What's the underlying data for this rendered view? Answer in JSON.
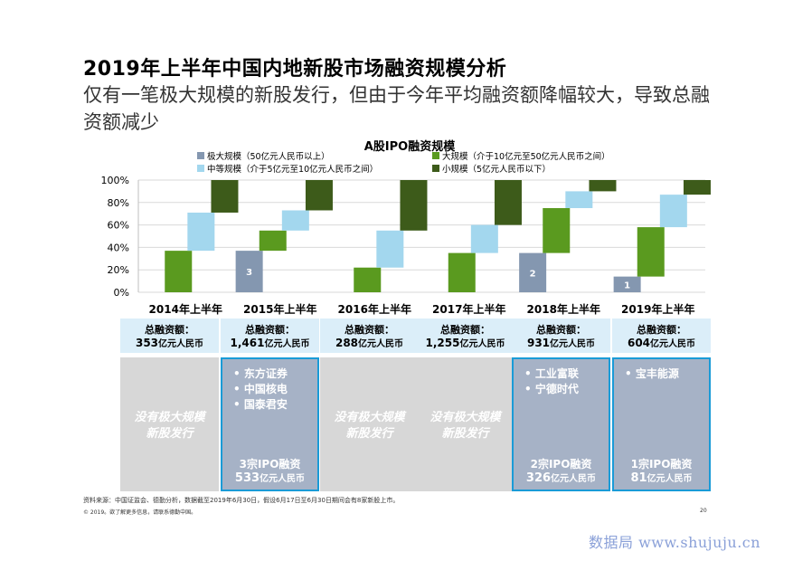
{
  "header": {
    "title": "2019年上半年中国内地新股市场融资规模分析",
    "subtitle": "仅有一笔极大规模的新股发行，但由于今年平均融资额降幅较大，导致总融资额减少"
  },
  "chart_data": {
    "type": "bar",
    "title": "A股IPO融资规模",
    "categories": [
      "2014年上半年",
      "2015年上半年",
      "2016年上半年",
      "2017年上半年",
      "2018年上半年",
      "2019年上半年"
    ],
    "y_ticks": [
      "100%",
      "80%",
      "60%",
      "40%",
      "20%",
      "0%"
    ],
    "ylim": [
      0,
      100
    ],
    "legend": [
      {
        "name": "极大规模（50亿元人民币以上）",
        "color": "#8497b0"
      },
      {
        "name": "大规模（介于10亿元至50亿元人民币之间）",
        "color": "#5a9a1f"
      },
      {
        "name": "中等规模（介于5亿元至10亿元人民币之间）",
        "color": "#a3d7ee"
      },
      {
        "name": "小规模（5亿元人民币以下）",
        "color": "#3d5b1a"
      }
    ],
    "series": [
      {
        "name": "极大规模（50亿元人民币以上）",
        "values": [
          0,
          37,
          0,
          0,
          35,
          14
        ],
        "labels": [
          "",
          "3",
          "",
          "",
          "2",
          "1"
        ]
      },
      {
        "name": "大规模（介于10亿元至50亿元人民币之间）",
        "values": [
          37,
          18,
          22,
          35,
          40,
          44
        ]
      },
      {
        "name": "中等规模（介于5亿元至10亿元人民币之间）",
        "values": [
          34,
          18,
          33,
          25,
          15,
          29
        ]
      },
      {
        "name": "小规模（5亿元人民币以下）",
        "values": [
          29,
          27,
          45,
          40,
          10,
          13
        ]
      }
    ]
  },
  "totals": {
    "label": "总融资额：",
    "unit": "亿元人民币",
    "amounts": [
      "353",
      "1,461",
      "288",
      "1,255",
      "931",
      "604"
    ]
  },
  "boxes": [
    {
      "type": "none",
      "text1": "没有极大规模",
      "text2": "新股发行"
    },
    {
      "type": "list",
      "items": [
        "东方证券",
        "中国核电",
        "国泰君安"
      ],
      "sum1": "3宗IPO融资",
      "sum2a": "533",
      "sum2b": "亿元人民币"
    },
    {
      "type": "none",
      "text1": "没有极大规模",
      "text2": "新股发行"
    },
    {
      "type": "none",
      "text1": "没有极大规模",
      "text2": "新股发行"
    },
    {
      "type": "list",
      "items": [
        "工业富联",
        "宁德时代"
      ],
      "sum1": "2宗IPO融资",
      "sum2a": "326",
      "sum2b": "亿元人民币"
    },
    {
      "type": "list",
      "items": [
        "宝丰能源"
      ],
      "sum1": "1宗IPO融资",
      "sum2a": "81",
      "sum2b": "亿元人民币"
    }
  ],
  "footer": {
    "source": "资料来源：中国证监会、德勤分析，数据截至2019年6月30日，假设6月17日至6月30日期间会有8家新股上市。",
    "copyright": "© 2019。欲了解更多信息，请联系德勤中国。",
    "page": "20",
    "watermark": "数据局 www.shujuju.cn"
  }
}
